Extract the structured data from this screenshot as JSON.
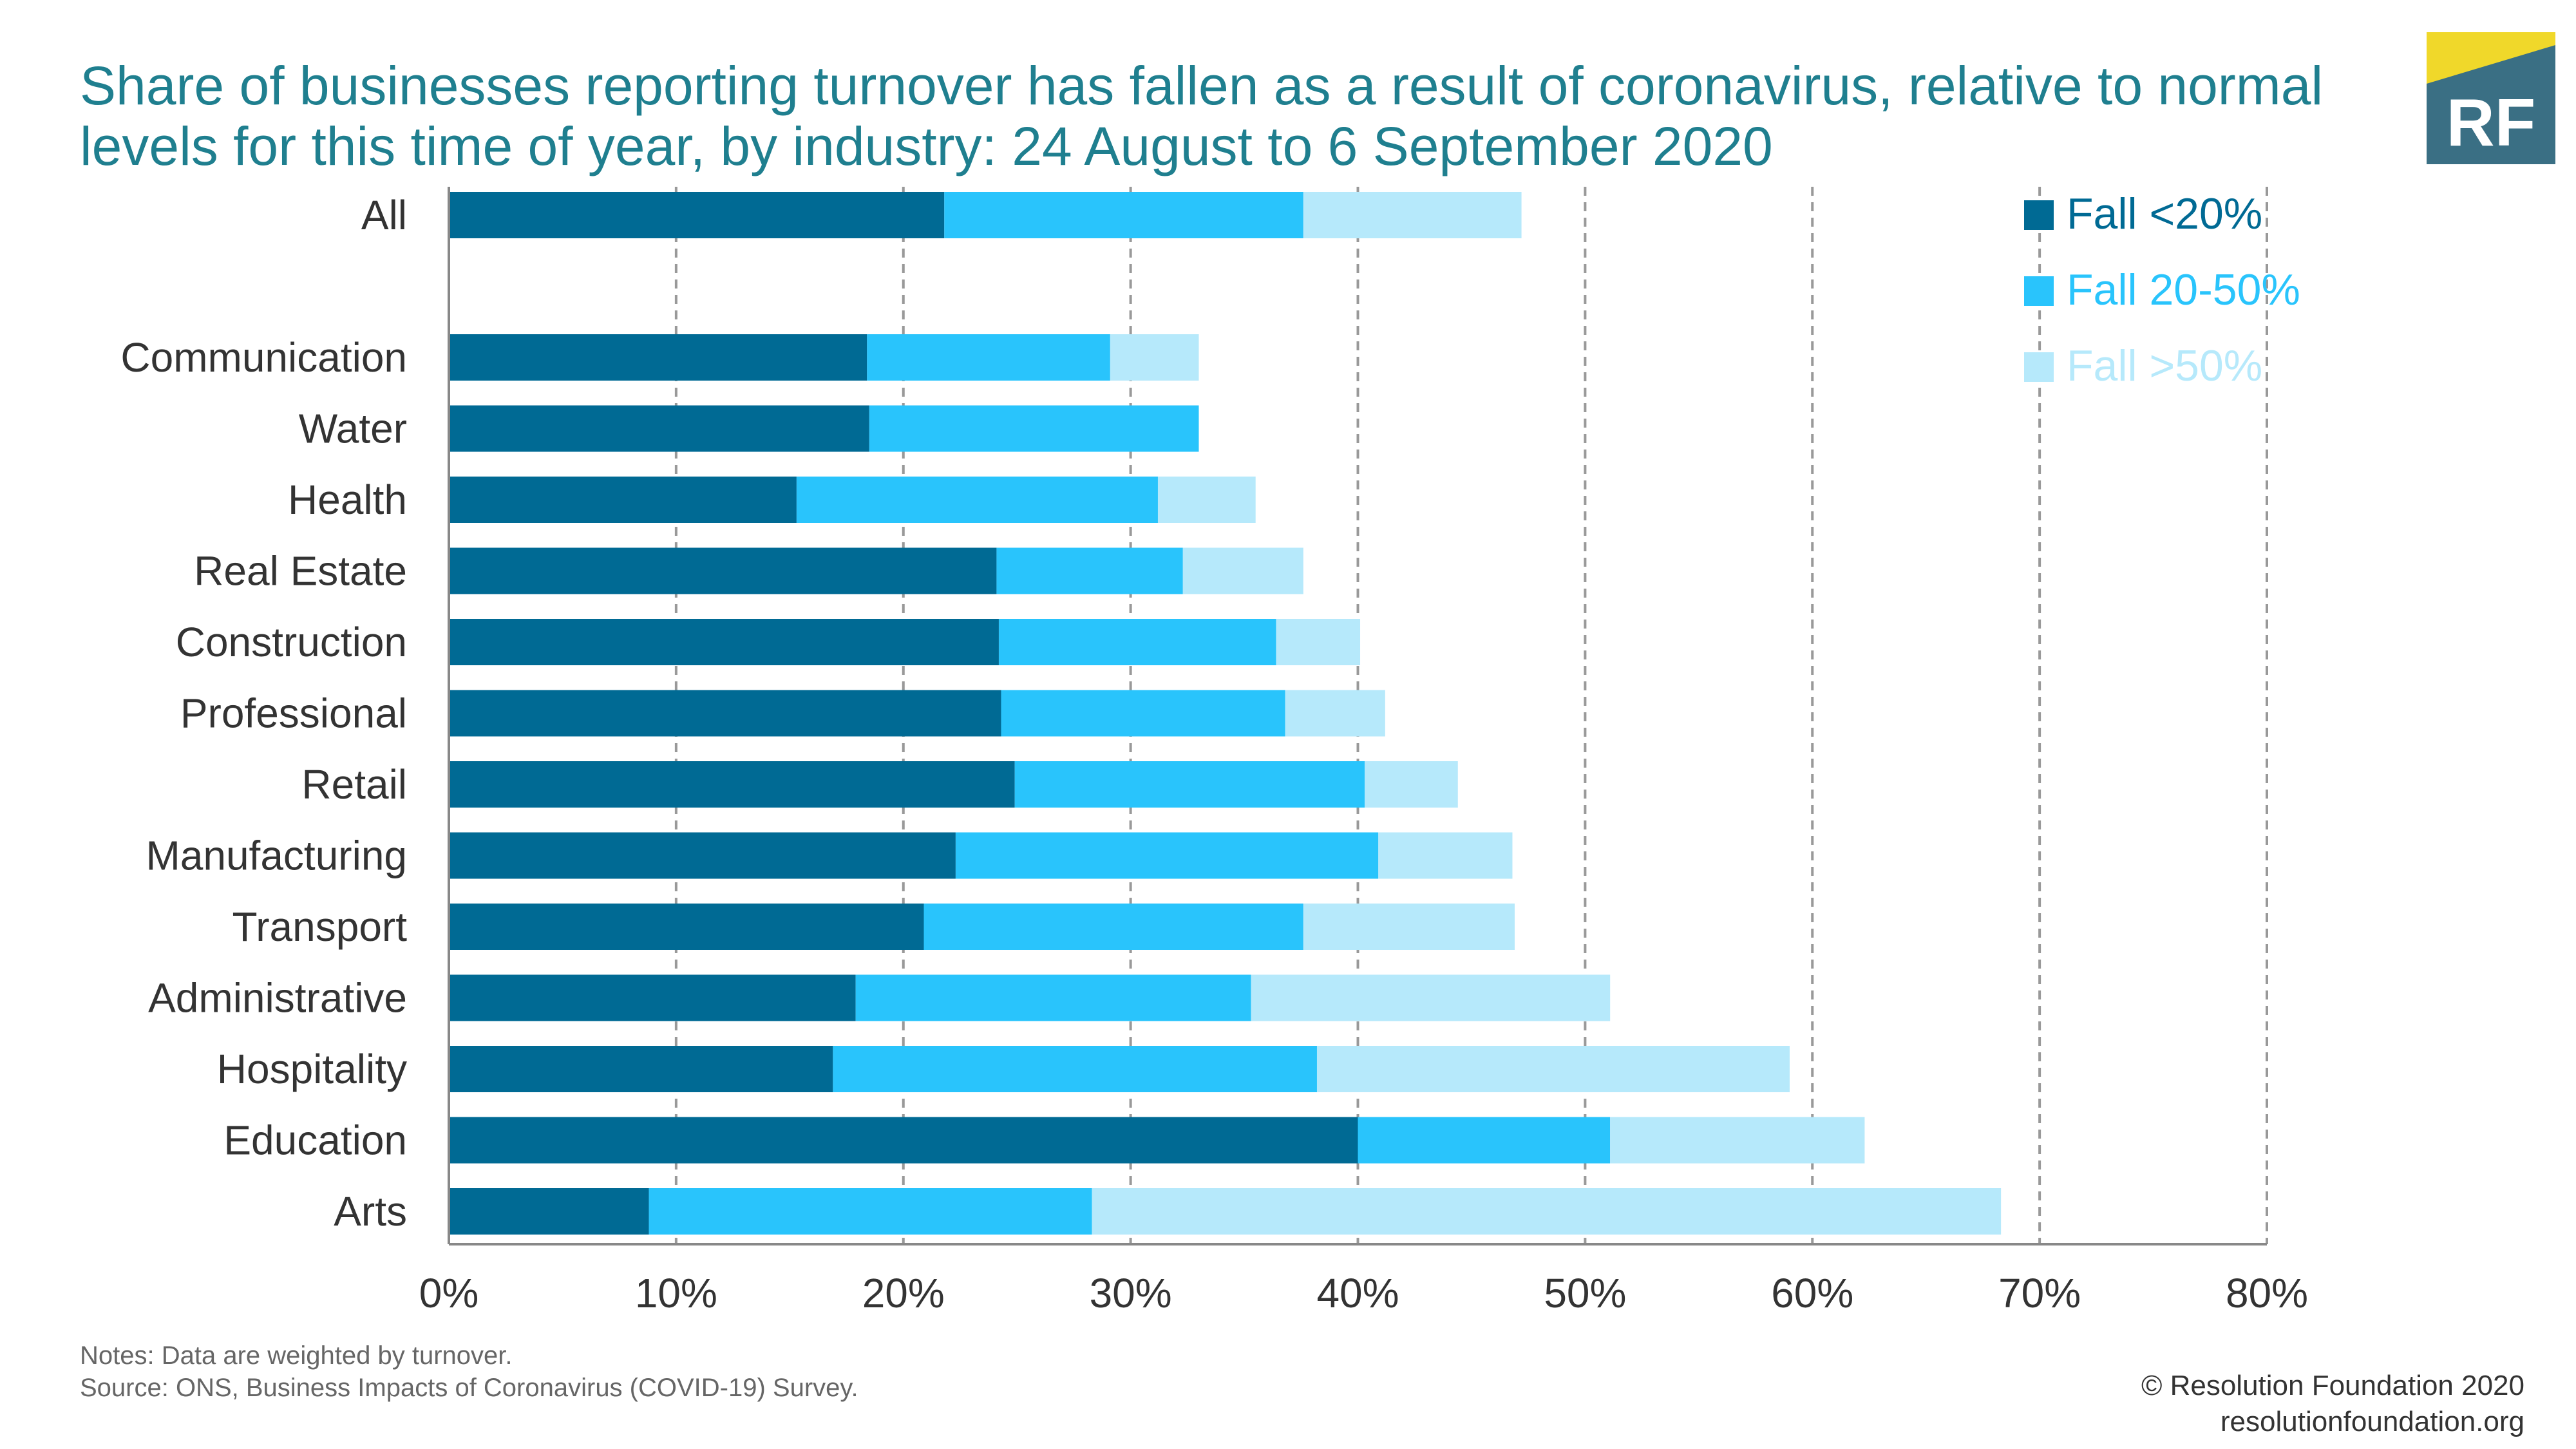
{
  "title": "Share of businesses reporting turnover has fallen as a result of coronavirus, relative to normal levels for this time of year, by industry: 24 August to 6 September 2020",
  "logo": {
    "text": "RF",
    "colors": {
      "yellow": "#f0d82a",
      "teal": "#3a6f84",
      "text": "#ffffff"
    }
  },
  "chart_data": {
    "type": "bar",
    "orientation": "horizontal",
    "stacked": true,
    "title": "Share of businesses reporting turnover has fallen as a result of coronavirus, relative to normal levels for this time of year, by industry: 24 August to 6 September 2020",
    "categories": [
      "All",
      "",
      "Communication",
      "Water",
      "Health",
      "Real Estate",
      "Construction",
      "Professional",
      "Retail",
      "Manufacturing",
      "Transport",
      "Administrative",
      "Hospitality",
      "Education",
      "Arts"
    ],
    "series": [
      {
        "name": "Fall <20%",
        "color": "#006a94",
        "values": [
          21.8,
          null,
          18.4,
          18.5,
          15.3,
          24.1,
          24.2,
          24.3,
          24.9,
          22.3,
          20.9,
          17.9,
          16.9,
          40.0,
          8.8
        ]
      },
      {
        "name": "Fall 20-50%",
        "color": "#29c4fc",
        "values": [
          15.8,
          null,
          10.7,
          14.5,
          15.9,
          8.2,
          12.2,
          12.5,
          15.4,
          18.6,
          16.7,
          17.4,
          21.3,
          11.1,
          19.5
        ]
      },
      {
        "name": "Fall >50%",
        "color": "#b6e9fb",
        "values": [
          9.6,
          null,
          3.9,
          0,
          4.3,
          5.3,
          3.7,
          4.4,
          4.1,
          5.9,
          9.3,
          15.8,
          20.8,
          11.2,
          40.0
        ]
      }
    ],
    "x_ticks": [
      "0%",
      "10%",
      "20%",
      "30%",
      "40%",
      "50%",
      "60%",
      "70%",
      "80%"
    ],
    "xlim": [
      0,
      80
    ],
    "grid": "vertical dashed",
    "legend_position": "top-right",
    "xlabel": "",
    "ylabel": ""
  },
  "notes": {
    "line1": "Notes: Data are weighted by turnover.",
    "line2": "Source: ONS, Business Impacts of Coronavirus (COVID-19) Survey."
  },
  "credit": {
    "line1": "© Resolution Foundation 2020",
    "line2": "resolutionfoundation.org"
  }
}
